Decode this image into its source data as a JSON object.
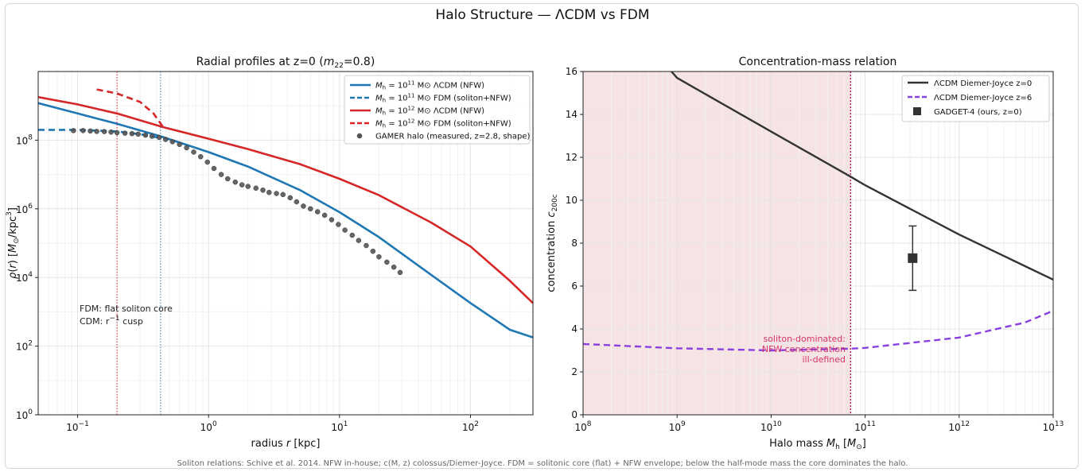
{
  "figure": {
    "suptitle": "Halo Structure — ΛCDM vs FDM",
    "caption": "Soliton relations: Schive et al. 2014. NFW in-house; c(M, z) colossus/Diemer-Joyce. FDM = solitonic core (flat) + NFW envelope; below the half-mode mass the core dominates the halo."
  },
  "chart_data": [
    {
      "type": "line",
      "title": "Radial profiles at z=0  (m22=0.8)",
      "xlabel": "radius  r [kpc]",
      "ylabel": "ρ(r) [M⊙/kpc³]",
      "xscale": "log",
      "yscale": "log",
      "xlim": [
        0.05,
        300
      ],
      "ylim": [
        1,
        10000000000
      ],
      "x_ticks": [
        {
          "v": 0.1,
          "label": "10",
          "exp": "−1"
        },
        {
          "v": 1,
          "label": "10",
          "exp": "0"
        },
        {
          "v": 10,
          "label": "10",
          "exp": "1"
        },
        {
          "v": 100,
          "label": "10",
          "exp": "2"
        }
      ],
      "y_ticks": [
        {
          "v": 1,
          "label": "10",
          "exp": "0"
        },
        {
          "v": 100,
          "label": "10",
          "exp": "2"
        },
        {
          "v": 10000,
          "label": "10",
          "exp": "4"
        },
        {
          "v": 1000000,
          "label": "10",
          "exp": "6"
        },
        {
          "v": 100000000,
          "label": "10",
          "exp": "8"
        }
      ],
      "grid": true,
      "legend_position": "top-right",
      "vlines": [
        {
          "x": 0.2,
          "color": "#d62728",
          "style": "dotted"
        },
        {
          "x": 0.43,
          "color": "#1f77b4",
          "style": "dotted"
        }
      ],
      "annotation": {
        "line1": "FDM: flat soliton core",
        "line2_prefix": "CDM: r",
        "line2_exp": "−1",
        "line2_suffix": " cusp"
      },
      "series": [
        {
          "name": "Mh = 10^11 M⊙ ΛCDM (NFW)",
          "legend": {
            "pre": "M",
            "sub": "h",
            "mid": " = 10",
            "exp": "11",
            "post": " M⊙ ΛCDM (NFW)"
          },
          "color": "#1f77b4",
          "style": "solid",
          "x": [
            0.05,
            0.1,
            0.2,
            0.43,
            1,
            2,
            5,
            10,
            20,
            50,
            100,
            200,
            300
          ],
          "y": [
            1200000000,
            600000000,
            300000000,
            130000000,
            45000000,
            17000000,
            3500000,
            800000,
            150000,
            12000,
            1800,
            300,
            180
          ]
        },
        {
          "name": "Mh = 10^11 M⊙ FDM (soliton+NFW)",
          "legend": {
            "pre": "M",
            "sub": "h",
            "mid": " = 10",
            "exp": "11",
            "post": " M⊙ FDM (soliton+NFW)"
          },
          "color": "#1f77b4",
          "style": "dashed",
          "x": [
            0.05,
            0.1,
            0.2,
            0.3,
            0.43
          ],
          "y": [
            200000000,
            200000000,
            180000000,
            150000000,
            115000000
          ]
        },
        {
          "name": "Mh = 10^12 M⊙ ΛCDM (NFW)",
          "legend": {
            "pre": "M",
            "sub": "h",
            "mid": " = 10",
            "exp": "12",
            "post": " M⊙ ΛCDM (NFW)"
          },
          "color": "#d62728",
          "style": "solid",
          "x": [
            0.05,
            0.1,
            0.2,
            0.45,
            1,
            2,
            5,
            10,
            20,
            50,
            100,
            200,
            300
          ],
          "y": [
            1800000000,
            1100000000,
            600000000,
            240000000,
            110000000,
            55000000,
            20000000,
            7500000,
            2500000,
            400000,
            80000,
            8000,
            1800
          ]
        },
        {
          "name": "Mh = 10^12 M⊙ FDM (soliton+NFW)",
          "legend": {
            "pre": "M",
            "sub": "h",
            "mid": " = 10",
            "exp": "12",
            "post": " M⊙ FDM (soliton+NFW)"
          },
          "color": "#d62728",
          "style": "dashed",
          "x": [
            0.14,
            0.2,
            0.3,
            0.38,
            0.45
          ],
          "y": [
            3000000000,
            2300000000,
            1300000000,
            600000000,
            240000000
          ]
        },
        {
          "name": "GAMER halo (measured, z=2.8, shape)",
          "legend": {
            "pre": "GAMER halo (measured, z=2.8, shape)"
          },
          "color": "#555555",
          "style": "markers",
          "x": [
            0.093,
            0.11,
            0.125,
            0.14,
            0.16,
            0.18,
            0.2,
            0.23,
            0.26,
            0.29,
            0.33,
            0.37,
            0.42,
            0.47,
            0.53,
            0.6,
            0.68,
            0.77,
            0.87,
            0.98,
            1.1,
            1.25,
            1.4,
            1.6,
            1.8,
            2.0,
            2.3,
            2.6,
            2.9,
            3.3,
            3.7,
            4.2,
            4.7,
            5.3,
            6.0,
            6.8,
            7.7,
            8.7,
            9.8,
            11,
            12.5,
            14,
            16,
            18,
            20,
            23,
            26,
            29
          ],
          "y": [
            190000000,
            190000000,
            185000000,
            180000000,
            178000000,
            172000000,
            165000000,
            160000000,
            155000000,
            150000000,
            140000000,
            130000000,
            120000000,
            105000000,
            90000000,
            75000000,
            60000000,
            45000000,
            33000000,
            23000000,
            15000000,
            10000000,
            7500000,
            6000000,
            5000000,
            4500000,
            4000000,
            3500000,
            3000000,
            2800000,
            2600000,
            2100000,
            1600000,
            1200000,
            1000000,
            820000,
            650000,
            480000,
            350000,
            240000,
            170000,
            120000,
            85000,
            58000,
            40000,
            28000,
            20000,
            14000
          ]
        }
      ]
    },
    {
      "type": "line",
      "title": "Concentration-mass relation",
      "xlabel": "Halo mass  Mh [M⊙]",
      "ylabel": "concentration c200c",
      "xscale": "log",
      "xlim": [
        100000000,
        10000000000000
      ],
      "ylim": [
        0,
        16
      ],
      "x_ticks": [
        {
          "v": 100000000,
          "label": "10",
          "exp": "8"
        },
        {
          "v": 1000000000,
          "label": "10",
          "exp": "9"
        },
        {
          "v": 10000000000,
          "label": "10",
          "exp": "10"
        },
        {
          "v": 100000000000,
          "label": "10",
          "exp": "11"
        },
        {
          "v": 1000000000000,
          "label": "10",
          "exp": "12"
        },
        {
          "v": 10000000000000,
          "label": "10",
          "exp": "13"
        }
      ],
      "y_ticks": [
        0,
        2,
        4,
        6,
        8,
        10,
        12,
        14,
        16
      ],
      "grid": true,
      "legend_position": "top-right",
      "shaded_region": {
        "x0": 100000000,
        "x1": 70000000000,
        "color": "#f6e3e3",
        "line_color": "#c2185b"
      },
      "shade_label": [
        "soliton-dominated:",
        "NFW concentration",
        "ill-defined"
      ],
      "series": [
        {
          "name": "ΛCDM Diemer-Joyce z=0",
          "color": "#333333",
          "style": "solid",
          "x": [
            870000000,
            1000000000,
            10000000000,
            70000000000,
            100000000000,
            1000000000000,
            10000000000000
          ],
          "y": [
            16,
            15.7,
            13.2,
            11.1,
            10.7,
            8.4,
            6.3
          ]
        },
        {
          "name": "ΛCDM Diemer-Joyce z=6",
          "color": "#8a3fe0",
          "style": "dashed",
          "x": [
            100000000,
            1000000000,
            10000000000,
            70000000000,
            100000000000,
            1000000000000,
            5000000000000,
            10000000000000
          ],
          "y": [
            3.3,
            3.1,
            3.0,
            3.08,
            3.12,
            3.6,
            4.3,
            4.85
          ]
        },
        {
          "name": "GADGET-4 (ours, z=0)",
          "color": "#333333",
          "style": "square-marker",
          "x": [
            320000000000
          ],
          "y": [
            7.3
          ],
          "err_low": 5.8,
          "err_high": 8.8
        }
      ]
    }
  ]
}
